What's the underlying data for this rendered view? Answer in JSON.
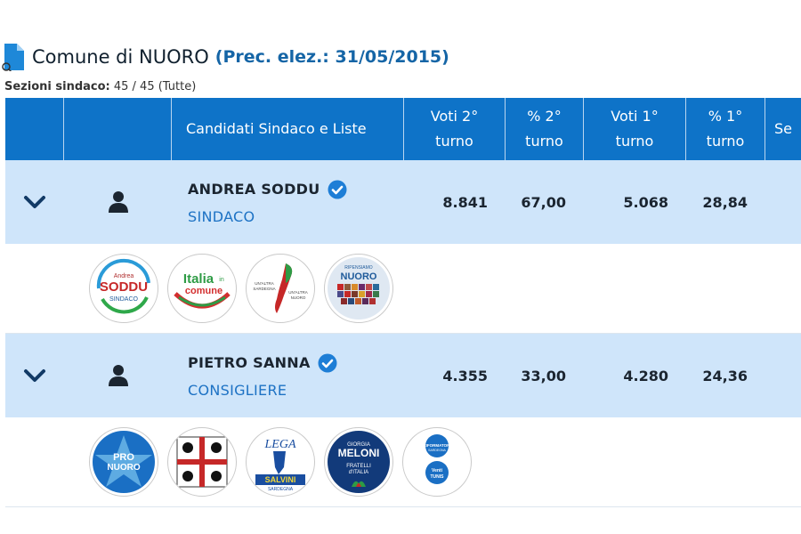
{
  "header": {
    "title": "Comune di NUORO",
    "prev_election": "(Prec. elez.: 31/05/2015)",
    "sezioni_label": "Sezioni sindaco:",
    "sezioni_value": "45 / 45 (Tutte)"
  },
  "table": {
    "columns": [
      "Candidati Sindaco e Liste",
      "Voti 2° turno",
      "% 2° turno",
      "Voti 1° turno",
      "% 1° turno",
      "Se"
    ],
    "candidates": [
      {
        "name": "ANDREA SODDU",
        "role": "SINDACO",
        "voti2": "8.841",
        "perc2": "67,00",
        "voti1": "5.068",
        "perc1": "28,84",
        "logos": [
          {
            "name": "soddu-sindaco-logo",
            "text": [
              "Andrea",
              "SODDU",
              "SINDACO"
            ]
          },
          {
            "name": "italia-in-comune-logo",
            "text": [
              "Italia",
              "in",
              "comune"
            ]
          },
          {
            "name": "un-altra-sardegna-logo",
            "text": [
              "UN'ALTRA",
              "SARDEGNA",
              "UN'ALTRA",
              "NUORO"
            ]
          },
          {
            "name": "ripensiamo-nuoro-logo",
            "text": [
              "RIPENSIAMO",
              "NUORO"
            ]
          }
        ]
      },
      {
        "name": "PIETRO SANNA",
        "role": "CONSIGLIERE",
        "voti2": "4.355",
        "perc2": "33,00",
        "voti1": "4.280",
        "perc1": "24,36",
        "logos": [
          {
            "name": "pro-nuoro-logo",
            "text": [
              "PRO",
              "NUORO"
            ]
          },
          {
            "name": "quattro-mori-logo",
            "text": []
          },
          {
            "name": "lega-salvini-logo",
            "text": [
              "LEGA",
              "SALVINI",
              "SARDEGNA"
            ]
          },
          {
            "name": "fratelli-italia-logo",
            "text": [
              "GIORGIA",
              "MELONI",
              "FRATELLI",
              "d'ITALIA"
            ]
          },
          {
            "name": "riformatori-sardegna-logo",
            "text": [
              "RIFORMATORI",
              "SARDEGNA",
              "Venti",
              "TUNIS"
            ]
          }
        ]
      }
    ]
  },
  "colors": {
    "header_blue": "#0e73c8",
    "row_blue": "#cfe5fa",
    "role_blue": "#1d72c4"
  }
}
